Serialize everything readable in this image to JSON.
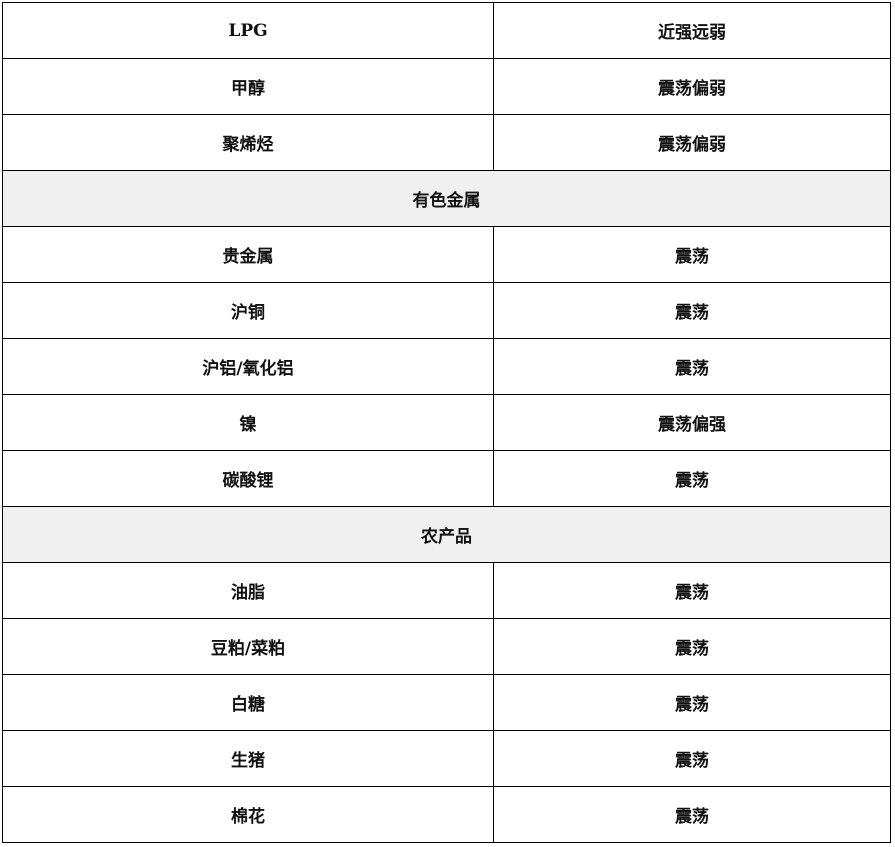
{
  "rows": [
    {
      "type": "item",
      "name": "LPG",
      "trend": "近强远弱"
    },
    {
      "type": "item",
      "name": "甲醇",
      "trend": "震荡偏弱"
    },
    {
      "type": "item",
      "name": "聚烯烃",
      "trend": "震荡偏弱"
    },
    {
      "type": "section",
      "name": "有色金属"
    },
    {
      "type": "item",
      "name": "贵金属",
      "trend": "震荡"
    },
    {
      "type": "item",
      "name": "沪铜",
      "trend": "震荡"
    },
    {
      "type": "item",
      "name": "沪铝/氧化铝",
      "trend": "震荡"
    },
    {
      "type": "item",
      "name": "镍",
      "trend": "震荡偏强"
    },
    {
      "type": "item",
      "name": "碳酸锂",
      "trend": "震荡"
    },
    {
      "type": "section",
      "name": "农产品"
    },
    {
      "type": "item",
      "name": "油脂",
      "trend": "震荡"
    },
    {
      "type": "item",
      "name": "豆粕/菜粕",
      "trend": "震荡"
    },
    {
      "type": "item",
      "name": "白糖",
      "trend": "震荡"
    },
    {
      "type": "item",
      "name": "生猪",
      "trend": "震荡"
    },
    {
      "type": "item",
      "name": "棉花",
      "trend": "震荡"
    }
  ],
  "colors": {
    "section_bg": "#f0f0f0",
    "border": "#000000"
  }
}
